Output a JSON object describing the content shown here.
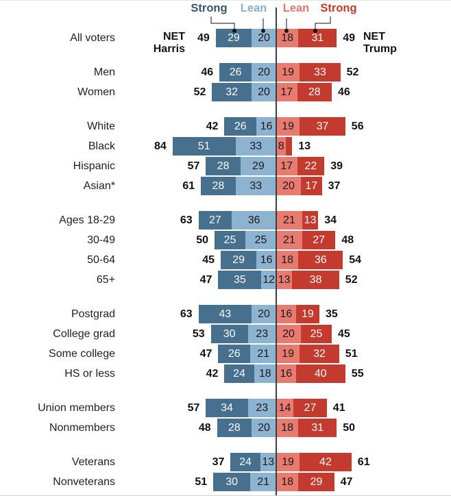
{
  "header": {
    "legend": [
      {
        "label": "Strong",
        "color": "#33566F",
        "side": "harris"
      },
      {
        "label": "Lean",
        "color": "#86AFD1",
        "side": "harris"
      },
      {
        "label": "Lean",
        "color": "#E3756B",
        "side": "trump"
      },
      {
        "label": "Strong",
        "color": "#C13A2B",
        "side": "trump"
      }
    ],
    "net_harris": {
      "line1": "NET",
      "line2": "Harris"
    },
    "net_trump": {
      "line1": "NET",
      "line2": "Trump"
    }
  },
  "chart_data": {
    "type": "bar",
    "variant": "diverging-stacked-horizontal",
    "unit": "%",
    "series": [
      "Strong Harris",
      "Lean Harris",
      "Lean Trump",
      "Strong Trump"
    ],
    "colors": {
      "strong_harris": "#47708F",
      "lean_harris": "#8DB3D1",
      "lean_trump": "#E87B6F",
      "strong_trump": "#C23B2E",
      "value_on_dark": "#FAFAFA",
      "value_on_light": "#1A1A1A",
      "axis": "#3C3C3C"
    },
    "legend_position": "top",
    "axis": {
      "center_value": 0,
      "grid": false
    },
    "groups": [
      {
        "rows": [
          {
            "label": "All voters",
            "net_harris": 49,
            "strong_harris": 29,
            "lean_harris": 20,
            "lean_trump": 18,
            "strong_trump": 31,
            "net_trump": 49
          }
        ]
      },
      {
        "rows": [
          {
            "label": "Men",
            "net_harris": 46,
            "strong_harris": 26,
            "lean_harris": 20,
            "lean_trump": 19,
            "strong_trump": 33,
            "net_trump": 52
          },
          {
            "label": "Women",
            "net_harris": 52,
            "strong_harris": 32,
            "lean_harris": 20,
            "lean_trump": 17,
            "strong_trump": 28,
            "net_trump": 46
          }
        ]
      },
      {
        "rows": [
          {
            "label": "White",
            "net_harris": 42,
            "strong_harris": 26,
            "lean_harris": 16,
            "lean_trump": 19,
            "strong_trump": 37,
            "net_trump": 56
          },
          {
            "label": "Black",
            "net_harris": 84,
            "strong_harris": 51,
            "lean_harris": 33,
            "lean_trump": 8,
            "strong_trump": 5,
            "net_trump": 13
          },
          {
            "label": "Hispanic",
            "net_harris": 57,
            "strong_harris": 28,
            "lean_harris": 29,
            "lean_trump": 17,
            "strong_trump": 22,
            "net_trump": 39
          },
          {
            "label": "Asian*",
            "net_harris": 61,
            "strong_harris": 28,
            "lean_harris": 33,
            "lean_trump": 20,
            "strong_trump": 17,
            "net_trump": 37
          }
        ]
      },
      {
        "rows": [
          {
            "label": "Ages 18-29",
            "net_harris": 63,
            "strong_harris": 27,
            "lean_harris": 36,
            "lean_trump": 21,
            "strong_trump": 13,
            "net_trump": 34
          },
          {
            "label": "30-49",
            "net_harris": 50,
            "strong_harris": 25,
            "lean_harris": 25,
            "lean_trump": 21,
            "strong_trump": 27,
            "net_trump": 48
          },
          {
            "label": "50-64",
            "net_harris": 45,
            "strong_harris": 29,
            "lean_harris": 16,
            "lean_trump": 18,
            "strong_trump": 36,
            "net_trump": 54
          },
          {
            "label": "65+",
            "net_harris": 47,
            "strong_harris": 35,
            "lean_harris": 12,
            "lean_trump": 13,
            "strong_trump": 38,
            "net_trump": 52
          }
        ]
      },
      {
        "rows": [
          {
            "label": "Postgrad",
            "net_harris": 63,
            "strong_harris": 43,
            "lean_harris": 20,
            "lean_trump": 16,
            "strong_trump": 19,
            "net_trump": 35
          },
          {
            "label": "College grad",
            "net_harris": 53,
            "strong_harris": 30,
            "lean_harris": 23,
            "lean_trump": 20,
            "strong_trump": 25,
            "net_trump": 45
          },
          {
            "label": "Some college",
            "net_harris": 47,
            "strong_harris": 26,
            "lean_harris": 21,
            "lean_trump": 19,
            "strong_trump": 32,
            "net_trump": 51
          },
          {
            "label": "HS or less",
            "net_harris": 42,
            "strong_harris": 24,
            "lean_harris": 18,
            "lean_trump": 16,
            "strong_trump": 40,
            "net_trump": 55
          }
        ]
      },
      {
        "rows": [
          {
            "label": "Union members",
            "net_harris": 57,
            "strong_harris": 34,
            "lean_harris": 23,
            "lean_trump": 14,
            "strong_trump": 27,
            "net_trump": 41
          },
          {
            "label": "Nonmembers",
            "net_harris": 48,
            "strong_harris": 28,
            "lean_harris": 20,
            "lean_trump": 18,
            "strong_trump": 31,
            "net_trump": 50
          }
        ]
      },
      {
        "rows": [
          {
            "label": "Veterans",
            "net_harris": 37,
            "strong_harris": 24,
            "lean_harris": 13,
            "lean_trump": 19,
            "strong_trump": 42,
            "net_trump": 61
          },
          {
            "label": "Nonveterans",
            "net_harris": 51,
            "strong_harris": 30,
            "lean_harris": 21,
            "lean_trump": 18,
            "strong_trump": 29,
            "net_trump": 47
          }
        ]
      }
    ]
  }
}
